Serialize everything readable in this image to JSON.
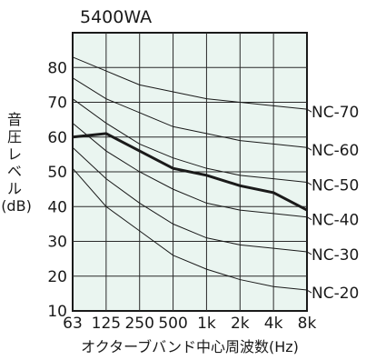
{
  "chart_data": {
    "type": "line",
    "title": "5400WA",
    "xlabel": "オクターブバンド中心周波数(Hz)",
    "ylabel_chars": [
      "音",
      "圧",
      "レ",
      "ベ",
      "ル"
    ],
    "ylabel_unit": "(dB)",
    "x": [
      "63",
      "125",
      "250",
      "500",
      "1k",
      "2k",
      "4k",
      "8k"
    ],
    "ylim": [
      10,
      90
    ],
    "yticks": [
      10,
      20,
      30,
      40,
      50,
      60,
      70,
      80
    ],
    "grid": true,
    "series": [
      {
        "name": "5400WA",
        "values": [
          60,
          61,
          56,
          51,
          49,
          46,
          44,
          39
        ]
      }
    ],
    "reference_curves": [
      {
        "name": "NC-70",
        "values": [
          83,
          79,
          75,
          73,
          71,
          70,
          69,
          68
        ]
      },
      {
        "name": "NC-60",
        "values": [
          77,
          71,
          67,
          63,
          61,
          59,
          58,
          57
        ]
      },
      {
        "name": "NC-50",
        "values": [
          71,
          64,
          58,
          54,
          51,
          49,
          48,
          47
        ]
      },
      {
        "name": "NC-40",
        "values": [
          64,
          56,
          50,
          45,
          41,
          39,
          38,
          37
        ]
      },
      {
        "name": "NC-30",
        "values": [
          57,
          48,
          41,
          35,
          31,
          29,
          28,
          27
        ]
      },
      {
        "name": "NC-20",
        "values": [
          51,
          40,
          33,
          26,
          22,
          19,
          17,
          16
        ]
      }
    ]
  }
}
